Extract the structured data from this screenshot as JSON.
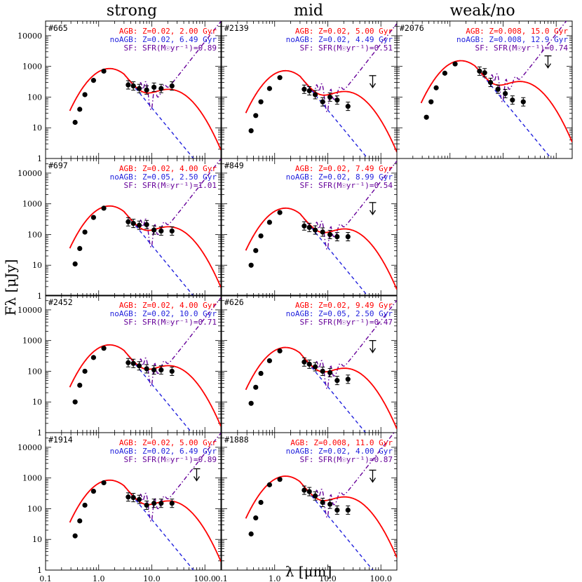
{
  "colors": {
    "agb": "#ff0000",
    "noagb": "#2222dd",
    "sf": "#660099",
    "data": "#000000"
  },
  "chart_data": {
    "type": "line",
    "grid": "3x4 panel grid; columns strong / mid / weak/no",
    "xlabel": "λ [μm]",
    "ylabel": "Fλ [μJy]",
    "xscale": "log",
    "yscale": "log",
    "xlim": [
      0.1,
      200
    ],
    "ylim": [
      1,
      30000
    ],
    "xticks": [
      "0.1",
      "1.0",
      "10.0",
      "100.0"
    ],
    "yticks": [
      "1",
      "10",
      "100",
      "1000",
      "10000"
    ],
    "columns": [
      {
        "title": "strong",
        "panels": [
          {
            "id": "#665",
            "agb": "AGB: Z=0.02,  2.00 Gyr",
            "noagb": "noAGB: Z=0.02,  6.49 Gyr",
            "sf": "SF: SFR(M☉yr⁻¹)=0.89",
            "scale": 1.0,
            "photometry": [
              [
                0.36,
                15
              ],
              [
                0.44,
                40
              ],
              [
                0.55,
                120
              ],
              [
                0.8,
                350
              ],
              [
                1.25,
                700
              ],
              [
                3.6,
                250
              ],
              [
                4.5,
                230
              ],
              [
                5.8,
                190
              ],
              [
                8.0,
                170
              ],
              [
                11,
                210
              ],
              [
                15,
                190
              ],
              [
                24,
                230
              ]
            ],
            "upper_limit": null
          },
          {
            "id": "#697",
            "agb": "AGB: Z=0.02,  4.00 Gyr",
            "noagb": "noAGB: Z=0.05,  2.50 Gyr",
            "sf": "SF: SFR(M☉yr⁻¹)=1.01",
            "scale": 1.0,
            "photometry": [
              [
                0.36,
                11
              ],
              [
                0.44,
                35
              ],
              [
                0.55,
                120
              ],
              [
                0.8,
                360
              ],
              [
                1.25,
                720
              ],
              [
                3.6,
                260
              ],
              [
                4.5,
                230
              ],
              [
                5.8,
                200
              ],
              [
                8.0,
                210
              ],
              [
                11,
                140
              ],
              [
                15,
                130
              ],
              [
                24,
                130
              ]
            ],
            "upper_limit": null
          },
          {
            "id": "#2452",
            "agb": "AGB: Z=0.02,  4.00 Gyr",
            "noagb": "noAGB: Z=0.02,  10.0 Gyr",
            "sf": "SF: SFR(M☉yr⁻¹)=0.71",
            "scale": 0.85,
            "photometry": [
              [
                0.36,
                10
              ],
              [
                0.44,
                35
              ],
              [
                0.55,
                100
              ],
              [
                0.8,
                280
              ],
              [
                1.25,
                560
              ],
              [
                3.6,
                190
              ],
              [
                4.5,
                180
              ],
              [
                5.8,
                150
              ],
              [
                8.0,
                120
              ],
              [
                11,
                110
              ],
              [
                15,
                110
              ],
              [
                24,
                100
              ]
            ],
            "upper_limit": null
          },
          {
            "id": "#1914",
            "agb": "AGB: Z=0.02,  5.00 Gyr",
            "noagb": "noAGB: Z=0.02,  6.49 Gyr",
            "sf": "SF: SFR(M☉yr⁻¹)=0.89",
            "scale": 1.0,
            "photometry": [
              [
                0.36,
                13
              ],
              [
                0.44,
                40
              ],
              [
                0.55,
                130
              ],
              [
                0.8,
                370
              ],
              [
                1.25,
                700
              ],
              [
                3.6,
                240
              ],
              [
                4.5,
                230
              ],
              [
                5.8,
                200
              ],
              [
                8.0,
                130
              ],
              [
                11,
                150
              ],
              [
                15,
                150
              ],
              [
                24,
                150
              ]
            ],
            "upper_limit": [
              70,
              2000
            ]
          }
        ]
      },
      {
        "title": "mid",
        "panels": [
          {
            "id": "#2139",
            "agb": "AGB: Z=0.02,  5.00 Gyr",
            "noagb": "noAGB: Z=0.02,  4.49 Gyr",
            "sf": "SF: SFR(M☉yr⁻¹)=0.51",
            "scale": 0.85,
            "photometry": [
              [
                0.36,
                8
              ],
              [
                0.44,
                25
              ],
              [
                0.55,
                70
              ],
              [
                0.8,
                190
              ],
              [
                1.25,
                430
              ],
              [
                3.6,
                180
              ],
              [
                4.5,
                160
              ],
              [
                5.8,
                120
              ],
              [
                8.0,
                70
              ],
              [
                11,
                100
              ],
              [
                15,
                80
              ],
              [
                24,
                50
              ]
            ],
            "upper_limit": [
              70,
              500
            ]
          },
          {
            "id": "#849",
            "agb": "AGB: Z=0.02,  7.49 Gyr",
            "noagb": "noAGB: Z=0.02,  8.99 Gyr",
            "sf": "SF: SFR(M☉yr⁻¹)=0.54",
            "scale": 0.85,
            "photometry": [
              [
                0.36,
                10
              ],
              [
                0.44,
                30
              ],
              [
                0.55,
                90
              ],
              [
                0.8,
                250
              ],
              [
                1.25,
                520
              ],
              [
                3.6,
                190
              ],
              [
                4.5,
                170
              ],
              [
                5.8,
                140
              ],
              [
                8.0,
                120
              ],
              [
                11,
                100
              ],
              [
                15,
                85
              ],
              [
                24,
                85
              ]
            ],
            "upper_limit": [
              70,
              1100
            ]
          },
          {
            "id": "#626",
            "agb": "AGB: Z=0.02,  9.49 Gyr",
            "noagb": "noAGB: Z=0.05,  2.50 Gyr",
            "sf": "SF: SFR(M☉yr⁻¹)=0.47",
            "scale": 0.7,
            "photometry": [
              [
                0.36,
                9
              ],
              [
                0.44,
                30
              ],
              [
                0.55,
                85
              ],
              [
                0.8,
                220
              ],
              [
                1.25,
                460
              ],
              [
                3.6,
                200
              ],
              [
                4.5,
                170
              ],
              [
                5.8,
                140
              ],
              [
                8.0,
                100
              ],
              [
                11,
                90
              ],
              [
                15,
                50
              ],
              [
                24,
                55
              ]
            ],
            "upper_limit": [
              70,
              1000
            ]
          },
          {
            "id": "#1888",
            "agb": "AGB: Z=0.008, 11.0 Gyr",
            "noagb": "noAGB: Z=0.02,  4.00 Gyr",
            "sf": "SF: SFR(M☉yr⁻¹)=0.87",
            "scale": 1.35,
            "photometry": [
              [
                0.36,
                15
              ],
              [
                0.44,
                50
              ],
              [
                0.55,
                160
              ],
              [
                0.8,
                600
              ],
              [
                1.25,
                900
              ],
              [
                3.6,
                400
              ],
              [
                4.5,
                360
              ],
              [
                5.8,
                260
              ],
              [
                8.0,
                160
              ],
              [
                11,
                140
              ],
              [
                15,
                90
              ],
              [
                24,
                90
              ]
            ],
            "upper_limit": [
              70,
              1800
            ]
          }
        ]
      },
      {
        "title": "weak/no",
        "panels": [
          {
            "id": "#2076",
            "agb": "AGB: Z=0.008, 15.0 Gyr",
            "noagb": "noAGB: Z=0.008, 12.9 Gyr",
            "sf": "SF: SFR(M☉yr⁻¹)=0.74",
            "scale": 1.8,
            "photometry": [
              [
                0.36,
                22
              ],
              [
                0.44,
                70
              ],
              [
                0.55,
                200
              ],
              [
                0.8,
                600
              ],
              [
                1.25,
                1200
              ],
              [
                3.6,
                700
              ],
              [
                4.5,
                620
              ],
              [
                5.8,
                300
              ],
              [
                8.0,
                180
              ],
              [
                11,
                130
              ],
              [
                15,
                80
              ],
              [
                24,
                70
              ]
            ],
            "upper_limit": [
              70,
              2200
            ]
          }
        ]
      }
    ]
  }
}
